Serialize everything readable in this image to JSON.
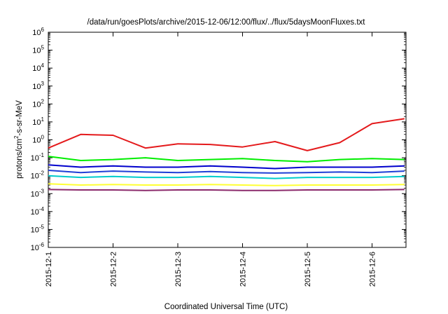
{
  "chart_data": {
    "type": "line",
    "title": "/data/run/goesPlots/archive/2015-12-06/12:00/flux/../flux/5daysMoonFluxes.txt",
    "xlabel": "Coordinated Universal Time (UTC)",
    "ylabel": "protons/cm²-s-sr-MeV",
    "ylabel_parts": {
      "pre": "protons/cm",
      "sup": "2",
      "post": "-s-sr-MeV"
    },
    "y_scale": "log",
    "ylim": [
      1e-06,
      1000000
    ],
    "y_ticks": [
      {
        "base": "10",
        "exp": "-6",
        "value": 1e-06
      },
      {
        "base": "10",
        "exp": "-5",
        "value": 1e-05
      },
      {
        "base": "10",
        "exp": "-4",
        "value": 0.0001
      },
      {
        "base": "10",
        "exp": "-3",
        "value": 0.001
      },
      {
        "base": "10",
        "exp": "-2",
        "value": 0.01
      },
      {
        "base": "10",
        "exp": "-1",
        "value": 0.1
      },
      {
        "base": "10",
        "exp": "0",
        "value": 1
      },
      {
        "base": "10",
        "exp": "1",
        "value": 10
      },
      {
        "base": "10",
        "exp": "2",
        "value": 100
      },
      {
        "base": "10",
        "exp": "3",
        "value": 1000
      },
      {
        "base": "10",
        "exp": "4",
        "value": 10000
      },
      {
        "base": "10",
        "exp": "5",
        "value": 100000
      },
      {
        "base": "10",
        "exp": "6",
        "value": 1000000
      }
    ],
    "x_ticks": [
      "2015-12-1",
      "2015-12-2",
      "2015-12-3",
      "2015-12-4",
      "2015-12-5",
      "2015-12-6"
    ],
    "x_days": [
      "2015-12-1",
      "2015-12-1.5",
      "2015-12-2",
      "2015-12-2.5",
      "2015-12-3",
      "2015-12-3.5",
      "2015-12-4",
      "2015-12-4.5",
      "2015-12-5",
      "2015-12-5.5",
      "2015-12-6",
      "2015-12-6.5"
    ],
    "grid": false,
    "legend": "none",
    "series": [
      {
        "color": "#e41a1c",
        "values": [
          0.35,
          2.0,
          1.8,
          0.35,
          0.6,
          0.55,
          0.4,
          0.8,
          0.25,
          0.7,
          8.0,
          15.0
        ]
      },
      {
        "color": "#00ee00",
        "values": [
          0.12,
          0.07,
          0.08,
          0.1,
          0.07,
          0.08,
          0.09,
          0.07,
          0.06,
          0.08,
          0.09,
          0.08
        ]
      },
      {
        "color": "#0000cc",
        "values": [
          0.04,
          0.03,
          0.035,
          0.03,
          0.03,
          0.035,
          0.03,
          0.025,
          0.03,
          0.03,
          0.03,
          0.035
        ]
      },
      {
        "color": "#1f3fd6",
        "values": [
          0.02,
          0.015,
          0.018,
          0.016,
          0.015,
          0.017,
          0.015,
          0.014,
          0.015,
          0.016,
          0.015,
          0.018
        ]
      },
      {
        "color": "#00cccc",
        "values": [
          0.01,
          0.008,
          0.009,
          0.008,
          0.008,
          0.009,
          0.008,
          0.007,
          0.008,
          0.008,
          0.008,
          0.009
        ]
      },
      {
        "color": "#ffff33",
        "values": [
          0.0035,
          0.003,
          0.0032,
          0.003,
          0.003,
          0.0032,
          0.003,
          0.0028,
          0.003,
          0.003,
          0.003,
          0.0032
        ]
      },
      {
        "color": "#8b2a6b",
        "values": [
          0.0017,
          0.0016,
          0.0016,
          0.0015,
          0.0016,
          0.0016,
          0.0015,
          0.0015,
          0.0016,
          0.0016,
          0.0016,
          0.0017
        ]
      }
    ]
  }
}
